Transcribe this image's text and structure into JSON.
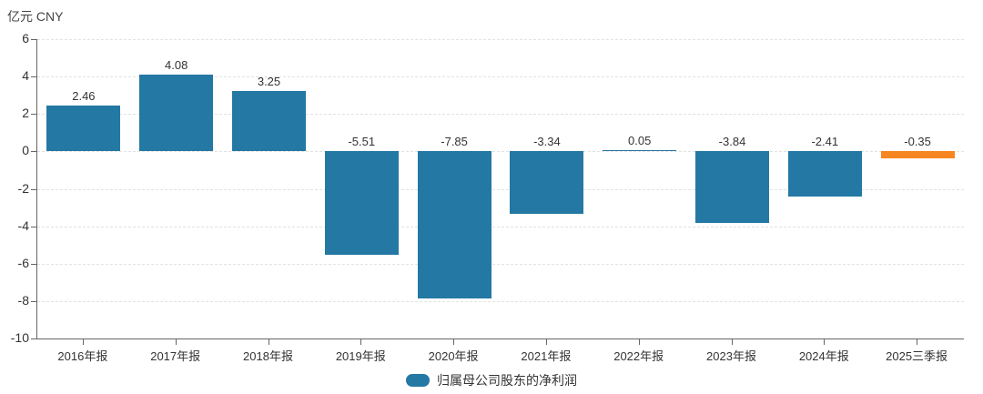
{
  "unit_label": "亿元 CNY",
  "legend": {
    "label": "归属母公司股东的净利润",
    "marker_color": "#2478a4"
  },
  "colors": {
    "bar": "#2478a4",
    "highlight": "#f6861f",
    "axis": "#666666",
    "grid": "#e2e2e2",
    "text": "#333333",
    "background": "#ffffff"
  },
  "chart_data": {
    "type": "bar",
    "title": "",
    "unit": "亿元 CNY",
    "categories": [
      "2016年报",
      "2017年报",
      "2018年报",
      "2019年报",
      "2020年报",
      "2021年报",
      "2022年报",
      "2023年报",
      "2024年报",
      "2025三季报"
    ],
    "series": [
      {
        "name": "归属母公司股东的净利润",
        "values": [
          2.46,
          4.08,
          3.25,
          -5.51,
          -7.85,
          -3.34,
          0.05,
          -3.84,
          -2.41,
          -0.35
        ]
      }
    ],
    "data_labels": [
      "2.46",
      "4.08",
      "3.25",
      "-5.51",
      "-7.85",
      "-3.34",
      "0.05",
      "-3.84",
      "-2.41",
      "-0.35"
    ],
    "bar_colors": [
      "#2478a4",
      "#2478a4",
      "#2478a4",
      "#2478a4",
      "#2478a4",
      "#2478a4",
      "#2478a4",
      "#2478a4",
      "#2478a4",
      "#f6861f"
    ],
    "ylim": [
      -10,
      6
    ],
    "yticks": [
      6,
      4,
      2,
      0,
      -2,
      -4,
      -6,
      -8,
      -10
    ],
    "grid": true,
    "grid_style": "dashed",
    "legend_position": "bottom",
    "value_label_position": "above-zero-or-bar-top"
  }
}
